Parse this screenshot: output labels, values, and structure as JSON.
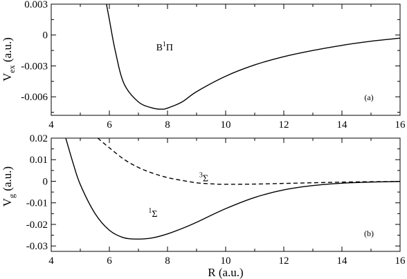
{
  "chart_data": [
    {
      "panel_id": "top",
      "type": "line",
      "panel_tag": "(a)",
      "ylabel_main": "V",
      "ylabel_sub": "ex",
      "ylabel_unit": " (a.u.)",
      "xlim": [
        4,
        16
      ],
      "ylim": [
        -0.0078,
        0.003
      ],
      "xticks": [
        4,
        6,
        8,
        10,
        12,
        14,
        16
      ],
      "yticks": [
        -0.006,
        -0.003,
        0,
        0.003
      ],
      "ytick_labels": [
        "-0.006",
        "-0.003",
        "0",
        "0.003"
      ],
      "annotations": [
        {
          "pre": "B",
          "sup": "1",
          "post": "Π",
          "x": 7.9,
          "y": -0.0015
        }
      ],
      "series": [
        {
          "style": "solid",
          "x": [
            5.9,
            6.0,
            6.2,
            6.5,
            7.0,
            7.5,
            7.8,
            8.0,
            8.5,
            9.0,
            10.0,
            11.0,
            12.0,
            13.0,
            14.0,
            15.0,
            16.0
          ],
          "y": [
            0.003,
            0.0015,
            -0.0015,
            -0.0047,
            -0.0065,
            -0.0071,
            -0.0072,
            -0.0071,
            -0.0065,
            -0.0055,
            -0.004,
            -0.0029,
            -0.0021,
            -0.0015,
            -0.001,
            -0.0006,
            -0.0003
          ]
        }
      ]
    },
    {
      "panel_id": "bottom",
      "type": "line",
      "panel_tag": "(b)",
      "ylabel_main": "V",
      "ylabel_sub": "g",
      "ylabel_unit": "  (a.u.)",
      "xlabel": "R (a.u.)",
      "xlim": [
        4,
        16
      ],
      "ylim": [
        -0.0325,
        0.02
      ],
      "xticks": [
        4,
        6,
        8,
        10,
        12,
        14,
        16
      ],
      "yticks": [
        -0.03,
        -0.02,
        -0.01,
        0,
        0.01,
        0.02
      ],
      "ytick_labels": [
        "-0.03",
        "-0.02",
        "-0.01",
        "0",
        "0.01",
        "0.02"
      ],
      "annotations": [
        {
          "pre": "",
          "sup": "1",
          "post": "Σ",
          "x": 7.5,
          "y": -0.0165
        },
        {
          "pre": "",
          "sup": "3",
          "post": "Σ",
          "x": 9.25,
          "y": 0.0
        }
      ],
      "series": [
        {
          "style": "solid",
          "x": [
            4.5,
            4.75,
            5.0,
            5.5,
            6.0,
            6.5,
            7.0,
            7.5,
            8.0,
            8.5,
            9.0,
            10.0,
            11.0,
            12.0,
            13.0,
            14.0,
            15.0,
            16.0
          ],
          "y": [
            0.02,
            0.0085,
            -0.0015,
            -0.0148,
            -0.0227,
            -0.0262,
            -0.0268,
            -0.0262,
            -0.0244,
            -0.0219,
            -0.019,
            -0.0127,
            -0.0075,
            -0.004,
            -0.002,
            -0.0009,
            -0.0004,
            -0.0001
          ]
        },
        {
          "style": "dashed",
          "x": [
            5.6,
            6.0,
            6.5,
            7.0,
            7.5,
            8.0,
            8.5,
            9.0,
            9.5,
            10.0,
            11.0,
            12.0,
            13.0,
            14.0,
            15.0,
            16.0
          ],
          "y": [
            0.02,
            0.0155,
            0.0102,
            0.0064,
            0.0037,
            0.0017,
            0.0004,
            -0.0007,
            -0.0012,
            -0.0014,
            -0.0013,
            -0.001,
            -0.0007,
            -0.0004,
            -0.0002,
            -0.0001
          ]
        }
      ]
    }
  ]
}
